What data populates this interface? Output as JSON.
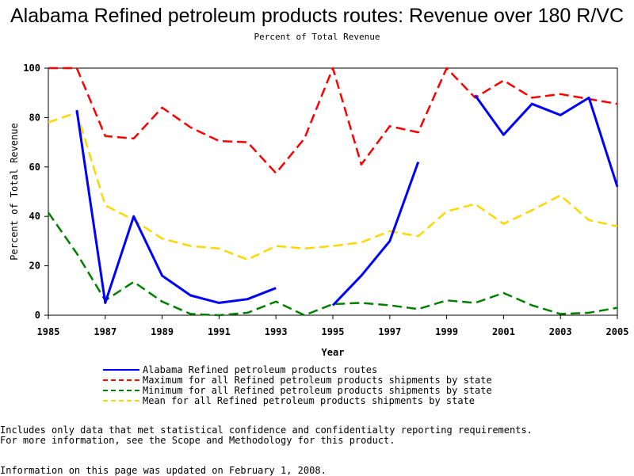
{
  "chart_data": {
    "type": "line",
    "title": "Alabama Refined petroleum products routes: Revenue over 180 R/VC",
    "subtitle": "Percent of Total Revenue",
    "xlabel": "Year",
    "ylabel": "Percent of Total Revenue",
    "xlim": [
      1985,
      2005
    ],
    "ylim": [
      0,
      100
    ],
    "x_ticks": [
      "1985",
      "1987",
      "1989",
      "1991",
      "1993",
      "1995",
      "1997",
      "1999",
      "2001",
      "2003",
      "2005"
    ],
    "y_ticks": [
      "0",
      "20",
      "40",
      "60",
      "80",
      "100"
    ],
    "x": [
      1985,
      1986,
      1987,
      1988,
      1989,
      1990,
      1991,
      1992,
      1993,
      1994,
      1995,
      1996,
      1997,
      1998,
      1999,
      2000,
      2001,
      2002,
      2003,
      2004,
      2005
    ],
    "series": [
      {
        "name": "Alabama Refined petroleum products routes",
        "color": "#0000ff",
        "style": "solid",
        "values": [
          null,
          83,
          5,
          40,
          16,
          8,
          5,
          6.5,
          11,
          null,
          4,
          16,
          30,
          62,
          null,
          89,
          73,
          85.5,
          81,
          88,
          52
        ]
      },
      {
        "name": "Maximum for all Refined petroleum products shipments by state",
        "color": "#ff0000",
        "style": "dashed",
        "values": [
          100,
          100,
          72.5,
          71.5,
          84,
          76,
          70.5,
          70,
          57.5,
          71.5,
          100,
          61,
          76.5,
          74,
          100,
          88,
          95,
          88,
          89.5,
          87.5,
          85.5
        ]
      },
      {
        "name": "Minimum for all Refined petroleum products shipments by state",
        "color": "#008000",
        "style": "dashed",
        "values": [
          41.5,
          25,
          6,
          13.5,
          5.5,
          0.5,
          0,
          1,
          5.5,
          0,
          4.5,
          5,
          4,
          2.5,
          6,
          5,
          9,
          4,
          0.5,
          1,
          3
        ]
      },
      {
        "name": "Mean for all Refined petroleum products shipments by state",
        "color": "#ffd700",
        "style": "dashed",
        "values": [
          78,
          82,
          44.5,
          38.5,
          31,
          28,
          27,
          22.5,
          28,
          27,
          28,
          29.5,
          34,
          32,
          42,
          45,
          37,
          42.5,
          48.5,
          38.5,
          36
        ]
      }
    ]
  },
  "notes": {
    "line1": "Includes only data that met statistical confidence and confidentialty reporting requirements.",
    "line2": "For more information, see the Scope and Methodology for this product.",
    "line3": "Information on this page was updated on February 1, 2008."
  }
}
